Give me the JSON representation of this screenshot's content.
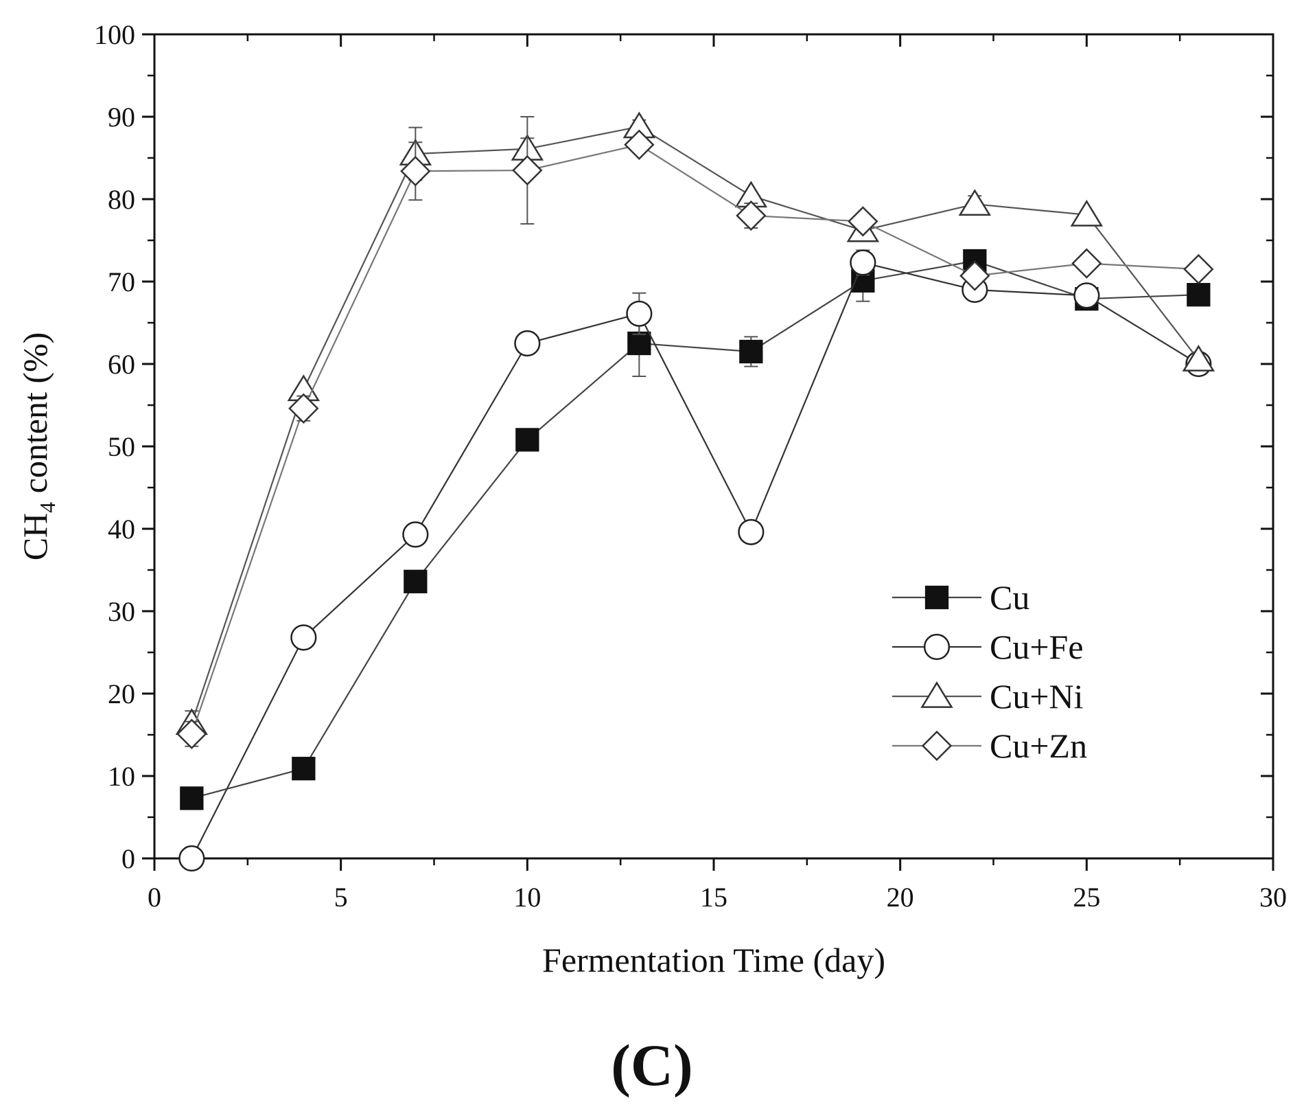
{
  "chart_data": {
    "type": "line",
    "title": "",
    "xlabel": "Fermentation Time (day)",
    "ylabel": {
      "prefix": "CH",
      "subscript": "4",
      "suffix": " content (%)"
    },
    "xlim": [
      0,
      30
    ],
    "ylim": [
      0,
      100
    ],
    "xticks": [
      0,
      5,
      10,
      15,
      20,
      25,
      30
    ],
    "yticks": [
      0,
      10,
      20,
      30,
      40,
      50,
      60,
      70,
      80,
      90,
      100
    ],
    "grid": false,
    "legend_position": "center-right",
    "x": [
      1,
      4,
      7,
      10,
      13,
      16,
      19,
      22,
      25,
      28
    ],
    "series": [
      {
        "name": "Cu",
        "marker": "filled-square",
        "values": [
          7.3,
          10.9,
          33.6,
          50.8,
          62.5,
          61.5,
          70.1,
          72.5,
          67.9,
          68.4
        ],
        "errors": [
          0,
          0,
          0,
          0,
          4.0,
          1.8,
          2.5,
          0,
          0,
          0
        ]
      },
      {
        "name": "Cu+Fe",
        "marker": "open-circle",
        "values": [
          0,
          26.8,
          39.3,
          62.5,
          66.1,
          39.6,
          72.3,
          69.0,
          68.3,
          60.0
        ],
        "errors": [
          0,
          0,
          0,
          0,
          2.5,
          0,
          1.5,
          1.2,
          0,
          0
        ]
      },
      {
        "name": "Cu+Ni",
        "marker": "open-triangle",
        "values": [
          16.4,
          56.9,
          85.5,
          86.1,
          88.8,
          80.4,
          76.2,
          79.4,
          78.1,
          60.5
        ],
        "errors": [
          1.5,
          0,
          3.2,
          1.3,
          0.8,
          0,
          1.0,
          1.0,
          0,
          0
        ]
      },
      {
        "name": "Cu+Zn",
        "marker": "open-diamond",
        "values": [
          15.1,
          54.6,
          83.4,
          83.5,
          86.6,
          78.0,
          77.3,
          70.7,
          72.2,
          71.5
        ],
        "errors": [
          1.5,
          1.5,
          3.5,
          6.5,
          0,
          1.5,
          0,
          0,
          0,
          0
        ]
      }
    ]
  },
  "figure": {
    "panel_label": "(C)"
  }
}
